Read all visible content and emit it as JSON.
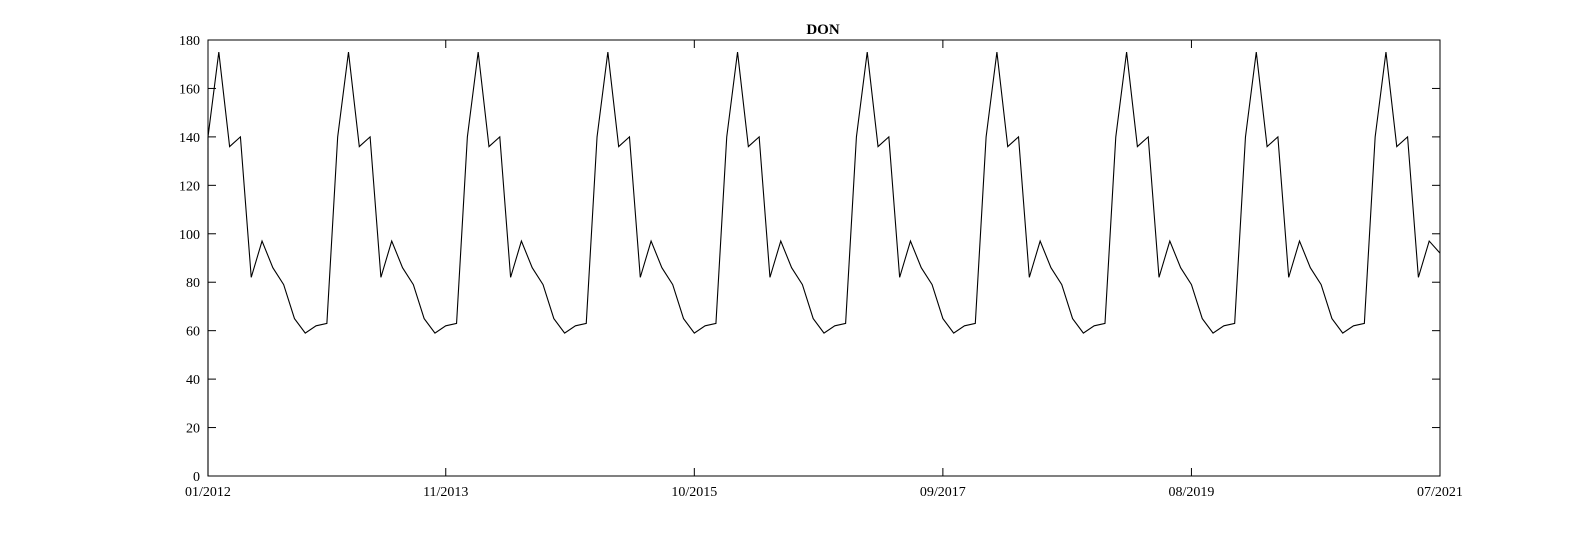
{
  "chart_data": {
    "type": "line",
    "title": "DON",
    "xlabel": "",
    "ylabel": "",
    "x_tick_labels": [
      "01/2012",
      "11/2013",
      "10/2015",
      "09/2017",
      "08/2019",
      "07/2021"
    ],
    "x_tick_dates": [
      "2012-01",
      "2013-11",
      "2015-10",
      "2017-09",
      "2019-08",
      "2021-07"
    ],
    "xlim": [
      "2012-01",
      "2021-07"
    ],
    "y_tick_labels": [
      "0",
      "20",
      "40",
      "60",
      "80",
      "100",
      "120",
      "140",
      "160",
      "180"
    ],
    "ylim": [
      0,
      180
    ],
    "grid": false,
    "line_color": "#000000",
    "series": [
      {
        "x": [
          "2012-01",
          "2012-02",
          "2012-03",
          "2012-04",
          "2012-05",
          "2012-06",
          "2012-07",
          "2012-08",
          "2012-09",
          "2012-10",
          "2012-11",
          "2012-12",
          "2013-01",
          "2013-02",
          "2013-03",
          "2013-04",
          "2013-05",
          "2013-06",
          "2013-07",
          "2013-08",
          "2013-09",
          "2013-10",
          "2013-11",
          "2013-12",
          "2014-01",
          "2014-02",
          "2014-03",
          "2014-04",
          "2014-05",
          "2014-06",
          "2014-07",
          "2014-08",
          "2014-09",
          "2014-10",
          "2014-11",
          "2014-12",
          "2015-01",
          "2015-02",
          "2015-03",
          "2015-04",
          "2015-05",
          "2015-06",
          "2015-07",
          "2015-08",
          "2015-09",
          "2015-10",
          "2015-11",
          "2015-12",
          "2016-01",
          "2016-02",
          "2016-03",
          "2016-04",
          "2016-05",
          "2016-06",
          "2016-07",
          "2016-08",
          "2016-09",
          "2016-10",
          "2016-11",
          "2016-12",
          "2017-01",
          "2017-02",
          "2017-03",
          "2017-04",
          "2017-05",
          "2017-06",
          "2017-07",
          "2017-08",
          "2017-09",
          "2017-10",
          "2017-11",
          "2017-12",
          "2018-01",
          "2018-02",
          "2018-03",
          "2018-04",
          "2018-05",
          "2018-06",
          "2018-07",
          "2018-08",
          "2018-09",
          "2018-10",
          "2018-11",
          "2018-12",
          "2019-01",
          "2019-02",
          "2019-03",
          "2019-04",
          "2019-05",
          "2019-06",
          "2019-07",
          "2019-08",
          "2019-09",
          "2019-10",
          "2019-11",
          "2019-12",
          "2020-01",
          "2020-02",
          "2020-03",
          "2020-04",
          "2020-05",
          "2020-06",
          "2020-07",
          "2020-08",
          "2020-09",
          "2020-10",
          "2020-11",
          "2020-12",
          "2021-01",
          "2021-02",
          "2021-03",
          "2021-04",
          "2021-05",
          "2021-06",
          "2021-07"
        ],
        "values": [
          140,
          175,
          136,
          140,
          82,
          97,
          86,
          79,
          65,
          59,
          62,
          63,
          140,
          175,
          136,
          140,
          82,
          97,
          86,
          79,
          65,
          59,
          62,
          63,
          140,
          175,
          136,
          140,
          82,
          97,
          86,
          79,
          65,
          59,
          62,
          63,
          140,
          175,
          136,
          140,
          82,
          97,
          86,
          79,
          65,
          59,
          62,
          63,
          140,
          175,
          136,
          140,
          82,
          97,
          86,
          79,
          65,
          59,
          62,
          63,
          140,
          175,
          136,
          140,
          82,
          97,
          86,
          79,
          65,
          59,
          62,
          63,
          140,
          175,
          136,
          140,
          82,
          97,
          86,
          79,
          65,
          59,
          62,
          63,
          140,
          175,
          136,
          140,
          82,
          97,
          86,
          79,
          65,
          59,
          62,
          63,
          140,
          175,
          136,
          140,
          82,
          97,
          86,
          79,
          65,
          59,
          62,
          63,
          140,
          175,
          136,
          140,
          82,
          97,
          92
        ],
        "start_line": {
          "x": "2012-01",
          "from": 0,
          "to": 140
        }
      }
    ]
  }
}
